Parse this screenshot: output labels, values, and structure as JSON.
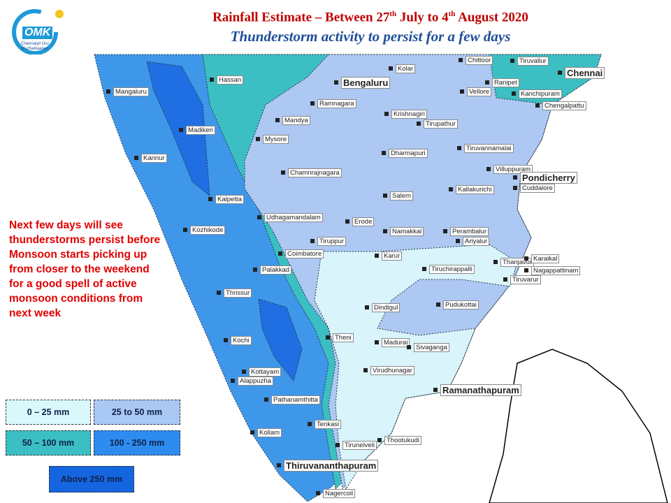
{
  "header": {
    "title": [
      "Rainfall Estimate – Between  27",
      "th",
      " July to 4",
      "th",
      " August 2020"
    ],
    "subtitle": "Thunderstorm activity to persist for a few days"
  },
  "logo": {
    "name": "OMK",
    "tagline": [
      "Chennaiyil Oru",
      "Mazhaikaalam"
    ]
  },
  "note": [
    "Next few days will see",
    "thunderstorms persist before",
    "Monsoon starts picking up",
    "from closer to the weekend",
    "for a good spell of active",
    "monsoon conditions from",
    "next week"
  ],
  "legend": [
    "0 – 25 mm",
    "25 to  50 mm",
    "50 – 100 mm",
    "100 - 250 mm",
    "Above 250 mm"
  ],
  "places": [
    "Chittoor",
    "Tiruvallur",
    "Chennai",
    "Kolar",
    "Hassan",
    "Bengaluru",
    "Ranipet",
    "Mangaluru",
    "Vellore",
    "Kanchipuram",
    "Ramnagara",
    "Chengalpattu",
    "Krishnagiri",
    "Mandya",
    "Tirupathur",
    "Madikeri",
    "Mysore",
    "Dharmapuri",
    "Tiruvannamalai",
    "Kannur",
    "Villuppuram",
    "Chamnrajnagara",
    "Pondicherry",
    "Kallakurichi",
    "Cuddalore",
    "Salem",
    "Kalpetta",
    "Udhagamandalam",
    "Erode",
    "Kozhikode",
    "Namakkal",
    "Perambalur",
    "Tiruppur",
    "Ariyalur",
    "Coimbatore",
    "Karur",
    "Thanjavur",
    "Karaikal",
    "Palakkad",
    "Tiruchirappalli",
    "Nagappattinam",
    "Tiruvarur",
    "Thrissur",
    "Pudukottai",
    "Dindigul",
    "Kochi",
    "Theni",
    "Madurai",
    "Sivaganga",
    "Kottayam",
    "Alappuzha",
    "Virudhunagar",
    "Ramanathapuram",
    "Pathanamthitta",
    "Tenkasi",
    "Kollam",
    "Tirunelveli",
    "Thootukudi",
    "Thiruvananthapuram",
    "Nagercoil"
  ]
}
